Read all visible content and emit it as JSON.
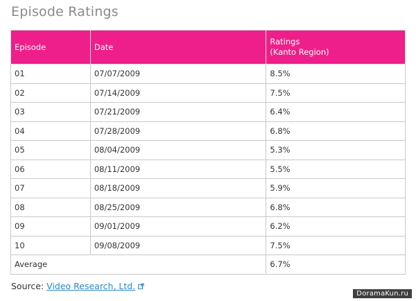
{
  "page": {
    "title": "Episode Ratings"
  },
  "table": {
    "headers": {
      "episode": "Episode",
      "date": "Date",
      "ratings_line1": "Ratings",
      "ratings_line2": "(Kanto Region)"
    },
    "rows": [
      {
        "episode": "01",
        "date": "07/07/2009",
        "rating": "8.5%"
      },
      {
        "episode": "02",
        "date": "07/14/2009",
        "rating": "7.5%"
      },
      {
        "episode": "03",
        "date": "07/21/2009",
        "rating": "6.4%"
      },
      {
        "episode": "04",
        "date": "07/28/2009",
        "rating": "6.8%"
      },
      {
        "episode": "05",
        "date": "08/04/2009",
        "rating": "5.3%"
      },
      {
        "episode": "06",
        "date": "08/11/2009",
        "rating": "5.5%"
      },
      {
        "episode": "07",
        "date": "08/18/2009",
        "rating": "5.9%"
      },
      {
        "episode": "08",
        "date": "08/25/2009",
        "rating": "6.8%"
      },
      {
        "episode": "09",
        "date": "09/01/2009",
        "rating": "6.2%"
      },
      {
        "episode": "10",
        "date": "09/08/2009",
        "rating": "7.5%"
      }
    ],
    "average": {
      "label": "Average",
      "rating": "6.7%"
    }
  },
  "source": {
    "label": "Source:",
    "link_text": "Video Research, Ltd.",
    "link_icon": "external-link-icon"
  },
  "watermark": {
    "text": "DoramaKun.ru"
  },
  "colors": {
    "header_bg": "#ee1f8a",
    "link": "#2a88c8"
  }
}
